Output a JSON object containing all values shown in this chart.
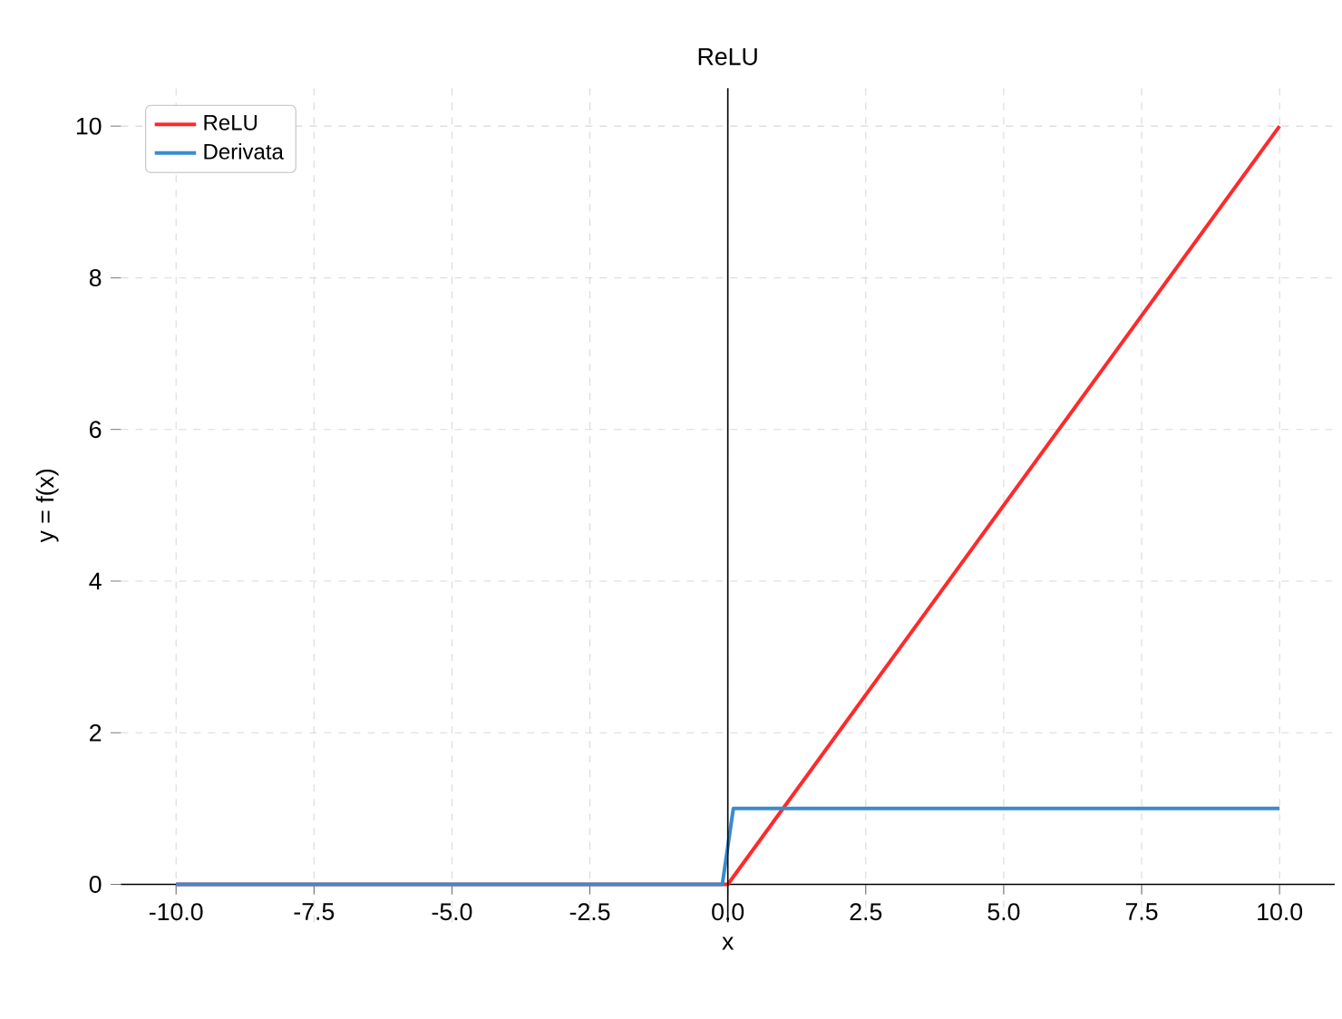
{
  "chart_data": {
    "type": "line",
    "title": "ReLU",
    "xlabel": "x",
    "ylabel": "y = f(x)",
    "series": [
      {
        "name": "ReLU",
        "color": "#ff2a2a",
        "x": [
          -10,
          0,
          10
        ],
        "values": [
          0,
          0,
          10
        ]
      },
      {
        "name": "Derivata",
        "color": "#3a8ccc",
        "x": [
          -10,
          -0.1,
          0.1,
          10
        ],
        "values": [
          0,
          0,
          1,
          1
        ]
      }
    ],
    "xlim": [
      -11,
      11
    ],
    "ylim": [
      -0.5,
      10.5
    ],
    "xticks": [
      {
        "value": -10,
        "label": "-10.0"
      },
      -7.5,
      {
        "value": -5,
        "label": "-5.0"
      },
      -2.5,
      {
        "value": 0,
        "label": "0.0"
      },
      2.5,
      {
        "value": 5,
        "label": "5.0"
      },
      7.5,
      {
        "value": 10,
        "label": "10.0"
      }
    ],
    "yticks": [
      0,
      2,
      4,
      6,
      8,
      10
    ],
    "ref_lines": [
      {
        "axis": "x",
        "value": 0,
        "color": "#000000"
      }
    ],
    "grid": true,
    "legend": "top left",
    "line_style": "solid",
    "marker": "none"
  }
}
